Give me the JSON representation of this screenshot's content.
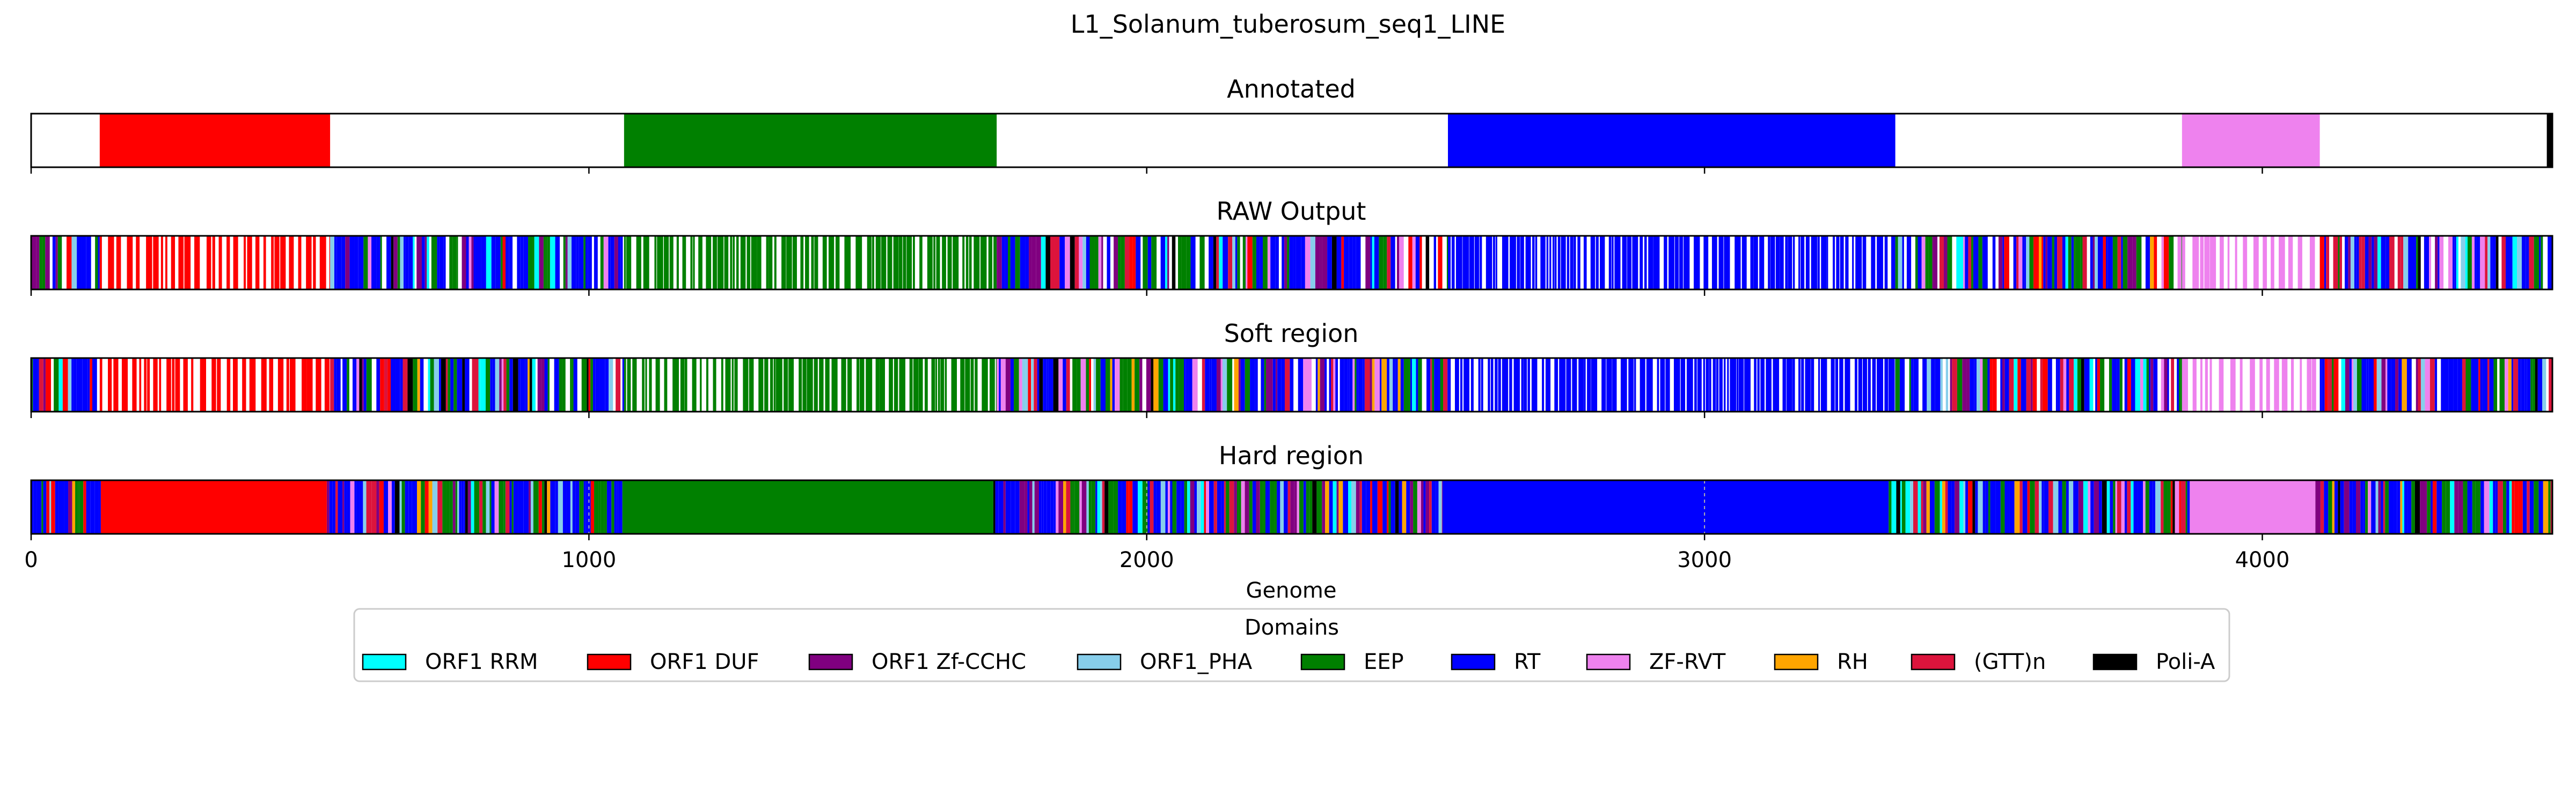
{
  "chart_data": {
    "type": "genome-track",
    "title": "L1_Solanum_tuberosum_seq1_LINE",
    "xlabel": "Genome",
    "xlim": [
      0,
      4520
    ],
    "x_ticks": [
      0,
      1000,
      2000,
      3000,
      4000
    ],
    "x_tick_labels": [
      "0",
      "1000",
      "2000",
      "3000",
      "4000"
    ],
    "legend": {
      "title": "Domains",
      "placement": "bottom-center",
      "items": [
        {
          "name": "ORF1 RRM",
          "color": "#00ffff"
        },
        {
          "name": "ORF1 DUF",
          "color": "#ff0000"
        },
        {
          "name": "ORF1 Zf-CCHC",
          "color": "#800080"
        },
        {
          "name": "ORF1_PHA",
          "color": "#87ceeb"
        },
        {
          "name": "EEP",
          "color": "#008000"
        },
        {
          "name": "RT",
          "color": "#0000ff"
        },
        {
          "name": "ZF-RVT",
          "color": "#ee82ee"
        },
        {
          "name": "RH",
          "color": "#ffa500"
        },
        {
          "name": "(GTT)n",
          "color": "#dc143c"
        },
        {
          "name": "Poli-A",
          "color": "#000000"
        }
      ]
    },
    "tracks": [
      {
        "name": "Annotated",
        "segments": [
          {
            "start": 123,
            "end": 536,
            "domain": "ORF1 DUF"
          },
          {
            "start": 1063,
            "end": 1731,
            "domain": "EEP"
          },
          {
            "start": 2540,
            "end": 3342,
            "domain": "RT"
          },
          {
            "start": 3856,
            "end": 4103,
            "domain": "ZF-RVT"
          },
          {
            "start": 4510,
            "end": 4520,
            "domain": "Poli-A"
          }
        ]
      },
      {
        "name": "RAW Output",
        "dense_regions": [
          {
            "start": 0,
            "end": 123,
            "palette": "mixed",
            "density": 0.85
          },
          {
            "start": 123,
            "end": 536,
            "palette": "ORF1 DUF",
            "density": 0.5
          },
          {
            "start": 536,
            "end": 1063,
            "palette": "mixed",
            "density": 0.85
          },
          {
            "start": 1063,
            "end": 1731,
            "palette": "EEP",
            "density": 0.72
          },
          {
            "start": 1731,
            "end": 2540,
            "palette": "mixed",
            "density": 0.85
          },
          {
            "start": 2540,
            "end": 3342,
            "palette": "RT",
            "density": 0.78
          },
          {
            "start": 3342,
            "end": 3856,
            "palette": "mixed",
            "density": 0.85
          },
          {
            "start": 3856,
            "end": 4103,
            "palette": "ZF-RVT",
            "density": 0.4
          },
          {
            "start": 4103,
            "end": 4520,
            "palette": "mixed",
            "density": 0.88
          }
        ]
      },
      {
        "name": "Soft region",
        "dense_regions": [
          {
            "start": 0,
            "end": 123,
            "palette": "mixed",
            "density": 0.85
          },
          {
            "start": 123,
            "end": 536,
            "palette": "ORF1 DUF",
            "density": 0.5
          },
          {
            "start": 536,
            "end": 1063,
            "palette": "mixed",
            "density": 0.85
          },
          {
            "start": 1063,
            "end": 1731,
            "palette": "EEP",
            "density": 0.72
          },
          {
            "start": 1731,
            "end": 2540,
            "palette": "mixed",
            "density": 0.85
          },
          {
            "start": 2540,
            "end": 3342,
            "palette": "RT",
            "density": 0.78
          },
          {
            "start": 3342,
            "end": 3856,
            "palette": "mixed",
            "density": 0.85
          },
          {
            "start": 3856,
            "end": 4103,
            "palette": "ZF-RVT",
            "density": 0.45
          },
          {
            "start": 4103,
            "end": 4520,
            "palette": "mixed",
            "density": 0.88
          }
        ]
      },
      {
        "name": "Hard region",
        "segments": [
          {
            "start": 125,
            "end": 530,
            "domain": "ORF1 DUF"
          },
          {
            "start": 1060,
            "end": 1725,
            "domain": "EEP"
          },
          {
            "start": 2530,
            "end": 3330,
            "domain": "RT"
          },
          {
            "start": 3870,
            "end": 4095,
            "domain": "ZF-RVT"
          }
        ],
        "dense_regions": [
          {
            "start": 0,
            "end": 125,
            "palette": "mixed",
            "density": 1
          },
          {
            "start": 530,
            "end": 1060,
            "palette": "mixed",
            "density": 1
          },
          {
            "start": 1725,
            "end": 2530,
            "palette": "mixed",
            "density": 1
          },
          {
            "start": 3330,
            "end": 3870,
            "palette": "mixed",
            "density": 1
          },
          {
            "start": 4095,
            "end": 4520,
            "palette": "mixed",
            "density": 1
          }
        ]
      }
    ]
  }
}
